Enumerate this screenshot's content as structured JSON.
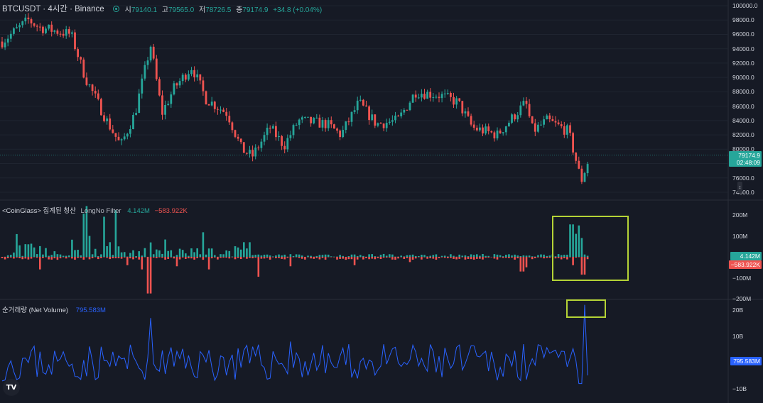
{
  "header": {
    "symbol_label": "BTCUSDT · 4시간 · Binance",
    "ohlc": [
      {
        "k": "시",
        "v": "79140.1"
      },
      {
        "k": "고",
        "v": "79565.0"
      },
      {
        "k": "저",
        "v": "78726.5"
      },
      {
        "k": "종",
        "v": "79174.9"
      }
    ],
    "change": "+34.8 (+0.04%)"
  },
  "price_axis": {
    "ticks": [
      "100000.0",
      "98000.0",
      "96000.0",
      "94000.0",
      "92000.0",
      "90000.0",
      "88000.0",
      "86000.0",
      "84000.0",
      "82000.0",
      "80000.0",
      "78000.0",
      "76000.0",
      "74000.0"
    ],
    "tick_values": [
      100000,
      98000,
      96000,
      94000,
      92000,
      90000,
      88000,
      86000,
      84000,
      82000,
      80000,
      78000,
      76000,
      74000
    ],
    "last_price": "79174.9",
    "countdown": "02:48:09"
  },
  "liquidations": {
    "title": "<CoinGlass> 집계된 청산",
    "filter_a": "Long",
    "filter_b": "No Filter",
    "long_value": "4.142M",
    "short_value": "−583.922K",
    "ticks": [
      "200M",
      "100M",
      "0",
      "−100M",
      "−200M"
    ],
    "tick_values": [
      200,
      100,
      0,
      -100,
      -200
    ]
  },
  "net_volume": {
    "title": "순거래량 (Net Volume)",
    "value": "795.583M",
    "ticks": [
      "20B",
      "10B",
      "0",
      "−10B"
    ],
    "tick_values": [
      20,
      10,
      0,
      -10
    ]
  },
  "colors": {
    "up": "#26a69a",
    "down": "#ef5350",
    "line": "#2962ff",
    "highlight": "#b5d336",
    "background": "#161a25"
  },
  "logo_text": "TV",
  "handle_icon": "↕"
}
